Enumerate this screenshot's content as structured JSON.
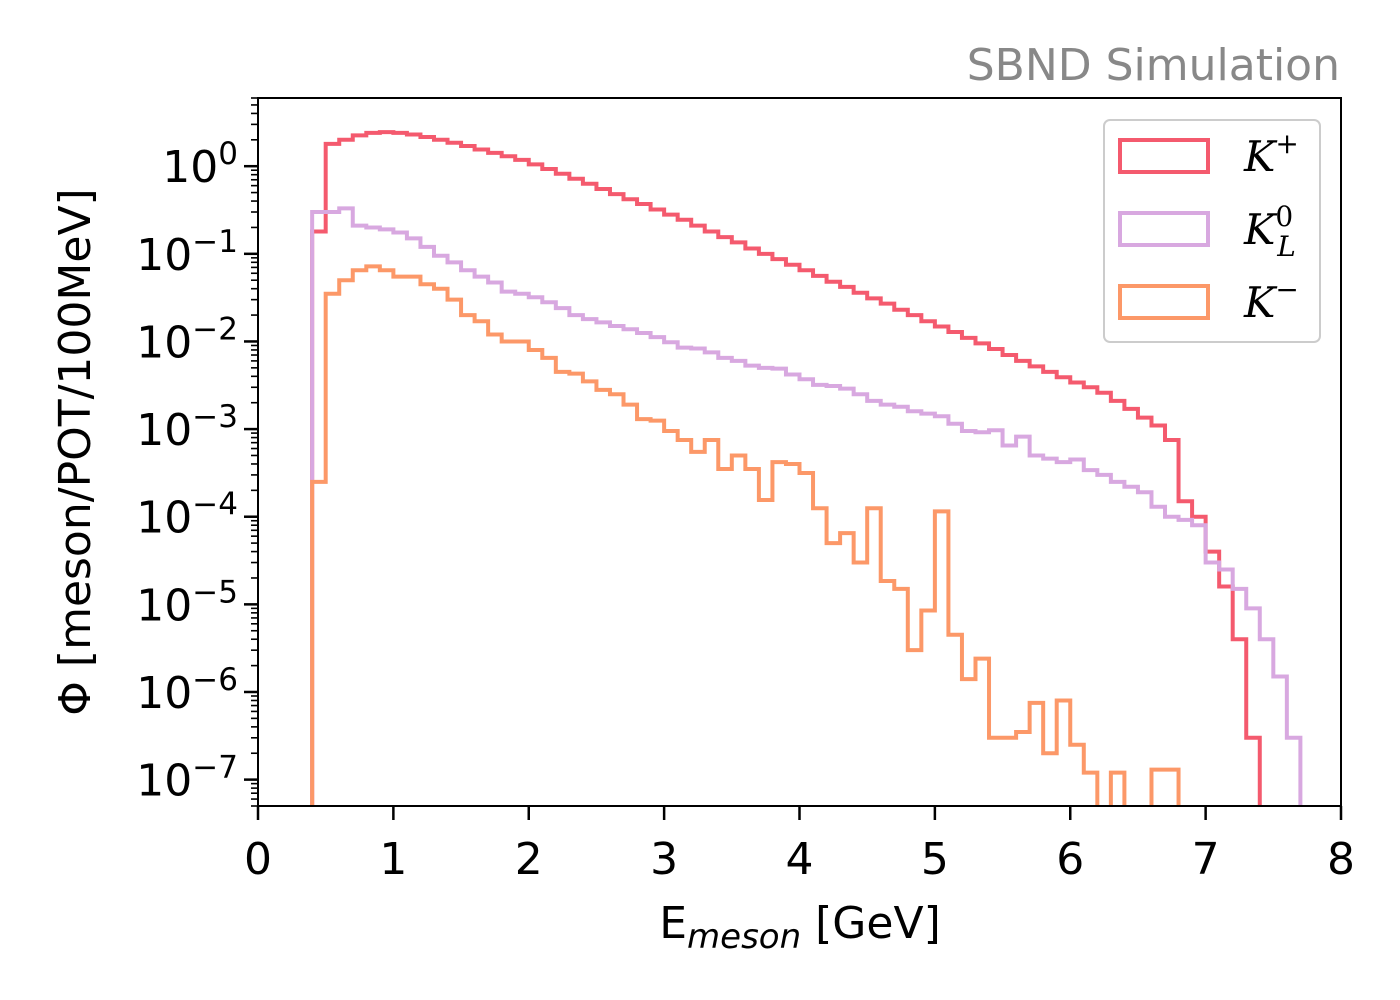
{
  "chart_data": {
    "type": "step",
    "corner_label": "SBND Simulation",
    "xlabel": {
      "main": "E",
      "sub": "meson",
      "tail": " [GeV]"
    },
    "ylabel": "Φ [meson/POT/100MeV]",
    "xlim": [
      0,
      8
    ],
    "ylim": [
      5e-08,
      6
    ],
    "yscale": "log",
    "x_ticks": [
      0,
      1,
      2,
      3,
      4,
      5,
      6,
      7,
      8
    ],
    "y_ticks": [
      {
        "value": 1,
        "base": "10",
        "exp": "0"
      },
      {
        "value": 0.1,
        "base": "10",
        "exp": "−1"
      },
      {
        "value": 0.01,
        "base": "10",
        "exp": "−2"
      },
      {
        "value": 0.001,
        "base": "10",
        "exp": "−3"
      },
      {
        "value": 0.0001,
        "base": "10",
        "exp": "−4"
      },
      {
        "value": 1e-05,
        "base": "10",
        "exp": "−5"
      },
      {
        "value": 1e-06,
        "base": "10",
        "exp": "−6"
      },
      {
        "value": 1e-07,
        "base": "10",
        "exp": "−7"
      }
    ],
    "grid": false,
    "legend_position": "top-right",
    "bin_width": 0.1,
    "series": [
      {
        "name": "K+",
        "legend": {
          "base": "K",
          "sup": "+",
          "sub": ""
        },
        "color": "#f45a6e",
        "bins_start": 0.4,
        "values": [
          0.18,
          1.8,
          2.0,
          2.25,
          2.4,
          2.45,
          2.4,
          2.3,
          2.15,
          2.0,
          1.85,
          1.7,
          1.55,
          1.42,
          1.3,
          1.18,
          1.05,
          0.93,
          0.82,
          0.72,
          0.63,
          0.55,
          0.48,
          0.42,
          0.37,
          0.32,
          0.28,
          0.245,
          0.21,
          0.18,
          0.155,
          0.135,
          0.115,
          0.1,
          0.087,
          0.075,
          0.065,
          0.056,
          0.048,
          0.042,
          0.036,
          0.031,
          0.027,
          0.023,
          0.02,
          0.017,
          0.0148,
          0.0128,
          0.011,
          0.0095,
          0.0082,
          0.007,
          0.006,
          0.0052,
          0.0045,
          0.0039,
          0.0034,
          0.003,
          0.0026,
          0.0021,
          0.0017,
          0.00135,
          0.0011,
          0.00075,
          0.00015,
          0.0001,
          4e-05,
          1.6e-05,
          4e-06,
          3e-07
        ]
      },
      {
        "name": "KL0",
        "legend": {
          "base": "K",
          "sup": "0",
          "sub": "L"
        },
        "color": "#d8a8e0",
        "bins_start": 0.4,
        "values": [
          0.3,
          0.3,
          0.33,
          0.21,
          0.2,
          0.19,
          0.175,
          0.15,
          0.12,
          0.095,
          0.08,
          0.065,
          0.055,
          0.047,
          0.037,
          0.035,
          0.032,
          0.028,
          0.024,
          0.02,
          0.018,
          0.0165,
          0.015,
          0.0138,
          0.0125,
          0.0112,
          0.0098,
          0.0085,
          0.0083,
          0.0075,
          0.0065,
          0.006,
          0.0053,
          0.005,
          0.0049,
          0.0042,
          0.0037,
          0.0032,
          0.0031,
          0.0029,
          0.0025,
          0.0021,
          0.0019,
          0.0018,
          0.0016,
          0.0015,
          0.0014,
          0.00115,
          0.00095,
          0.00092,
          0.00097,
          0.00065,
          0.00082,
          0.0005,
          0.00046,
          0.00042,
          0.00045,
          0.00034,
          0.0003,
          0.00025,
          0.00022,
          0.00019,
          0.00013,
          0.0001,
          9.2e-05,
          8e-05,
          3e-05,
          2.5e-05,
          1.5e-05,
          9e-06,
          4e-06,
          1.5e-06,
          3e-07
        ]
      },
      {
        "name": "K-",
        "legend": {
          "base": "K",
          "sup": "−",
          "sub": ""
        },
        "color": "#fc9868",
        "bins_start": 0.4,
        "values": [
          0.00025,
          0.035,
          0.05,
          0.065,
          0.072,
          0.065,
          0.055,
          0.055,
          0.045,
          0.04,
          0.03,
          0.02,
          0.017,
          0.012,
          0.01,
          0.01,
          0.008,
          0.0065,
          0.0045,
          0.0043,
          0.0035,
          0.0028,
          0.0025,
          0.0019,
          0.0013,
          0.00125,
          0.00095,
          0.00075,
          0.00055,
          0.00075,
          0.00035,
          0.0005,
          0.00035,
          0.000155,
          0.00042,
          0.0004,
          0.000315,
          0.000125,
          5e-05,
          6.5e-05,
          3e-05,
          0.000125,
          1.85e-05,
          1.5e-05,
          3e-06,
          8.5e-06,
          0.000115,
          4.5e-06,
          1.4e-06,
          2.4e-06,
          3e-07,
          3e-07,
          3.5e-07,
          7.5e-07,
          2e-07,
          8e-07,
          2.5e-07,
          1.2e-07,
          null,
          1.2e-07,
          null,
          null,
          1.3e-07,
          1.3e-07,
          null,
          null,
          null,
          null,
          null,
          null,
          null
        ]
      }
    ]
  }
}
